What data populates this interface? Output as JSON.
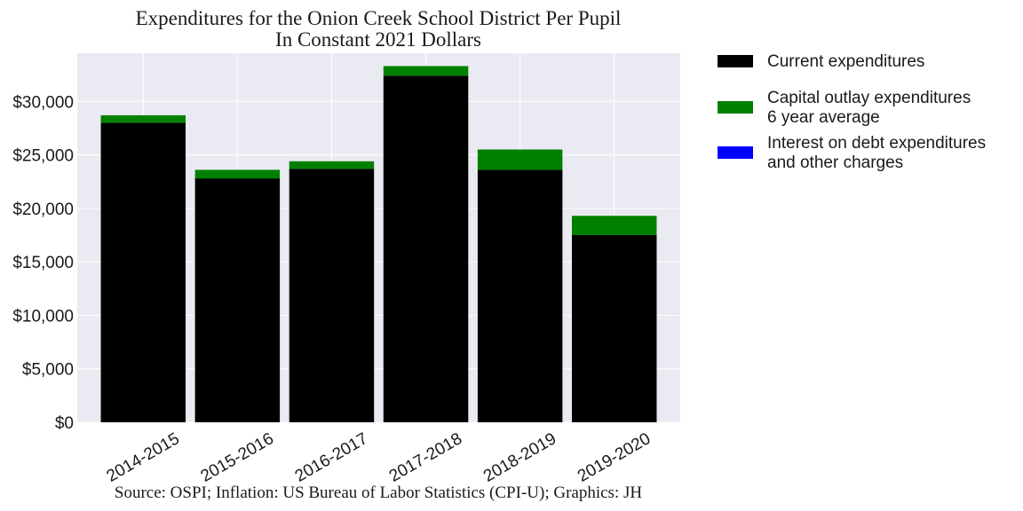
{
  "chart_data": {
    "type": "bar",
    "stacked": true,
    "title": "Expenditures for the Onion Creek School District Per Pupil",
    "subtitle": "In Constant 2021 Dollars",
    "source": "Source: OSPI; Inflation: US Bureau of Labor Statistics (CPI-U); Graphics: JH",
    "categories": [
      "2014-2015",
      "2015-2016",
      "2016-2017",
      "2017-2018",
      "2018-2019",
      "2019-2020"
    ],
    "series": [
      {
        "name": "Current expenditures",
        "color": "#000000",
        "values": [
          28000,
          22800,
          23700,
          32400,
          23600,
          17500
        ]
      },
      {
        "name": "Capital outlay expenditures\n6 year average",
        "color": "#008000",
        "values": [
          700,
          800,
          700,
          900,
          1900,
          1800
        ]
      },
      {
        "name": "Interest on debt expenditures\nand other charges",
        "color": "#0000ff",
        "values": [
          0,
          0,
          0,
          0,
          0,
          0
        ]
      }
    ],
    "ylim": [
      0,
      34500
    ],
    "yticks": [
      0,
      5000,
      10000,
      15000,
      20000,
      25000,
      30000
    ],
    "ytick_labels": [
      "$0",
      "$5,000",
      "$10,000",
      "$15,000",
      "$20,000",
      "$25,000",
      "$30,000"
    ],
    "xlabel": "",
    "ylabel": "",
    "grid": true,
    "legend_position": "outside-right"
  }
}
